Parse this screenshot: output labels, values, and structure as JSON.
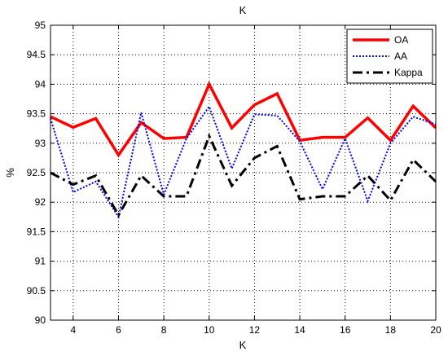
{
  "chart_data": {
    "type": "line",
    "title": "K",
    "xlabel": "K",
    "ylabel": "%",
    "xlim": [
      3,
      20
    ],
    "ylim": [
      90,
      95
    ],
    "x_ticks": [
      4,
      6,
      8,
      10,
      12,
      14,
      16,
      18,
      20
    ],
    "y_ticks": [
      90,
      90.5,
      91,
      91.5,
      92,
      92.5,
      93,
      93.5,
      94,
      94.5,
      95
    ],
    "x_tick_labels": [
      "4",
      "6",
      "8",
      "10",
      "12",
      "14",
      "16",
      "18",
      "20"
    ],
    "y_tick_labels": [
      "90",
      "90.5",
      "91",
      "91.5",
      "92",
      "92.5",
      "93",
      "93.5",
      "94",
      "94.5",
      "95"
    ],
    "grid": true,
    "legend_position": "top-right",
    "x": [
      3,
      4,
      5,
      6,
      7,
      8,
      9,
      10,
      11,
      12,
      13,
      14,
      15,
      16,
      17,
      18,
      19,
      20
    ],
    "series": [
      {
        "name": "OA",
        "color": "#ff0000",
        "style": "solid",
        "values": [
          93.45,
          93.27,
          93.42,
          92.8,
          93.35,
          93.08,
          93.1,
          94.0,
          93.26,
          93.65,
          93.84,
          93.05,
          93.1,
          93.1,
          93.43,
          93.05,
          93.63,
          93.26
        ]
      },
      {
        "name": "AA",
        "color": "#0000ff",
        "style": "dotted",
        "values": [
          93.42,
          92.17,
          92.35,
          91.75,
          93.52,
          92.13,
          93.08,
          93.62,
          92.57,
          93.49,
          93.47,
          93.03,
          92.22,
          93.08,
          92.02,
          93.0,
          93.45,
          93.32
        ]
      },
      {
        "name": "Kappa",
        "color": "#000000",
        "style": "dashdot",
        "values": [
          92.5,
          92.3,
          92.45,
          91.78,
          92.45,
          92.1,
          92.1,
          93.12,
          92.28,
          92.75,
          92.95,
          92.05,
          92.1,
          92.1,
          92.45,
          92.03,
          92.72,
          92.35
        ]
      }
    ]
  }
}
